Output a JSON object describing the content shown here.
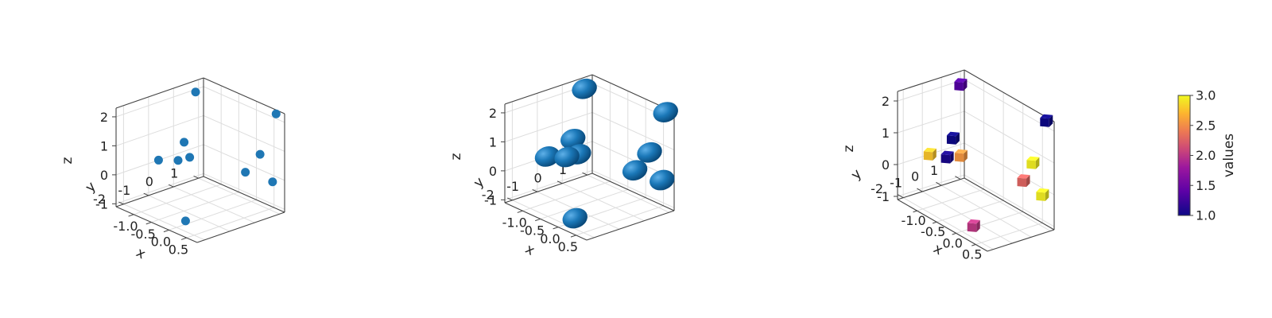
{
  "chart_data": [
    {
      "type": "scatter",
      "marker": "dot",
      "color": "#1f77b4",
      "title": "",
      "xlabel": "x",
      "ylabel": "y",
      "zlabel": "z",
      "xlim": [
        -1.5,
        0.8
      ],
      "ylim": [
        -2.3,
        1.2
      ],
      "zlim": [
        -1.1,
        2.3
      ],
      "xticks": [
        "-1.0",
        "-0.5",
        "0.0",
        "0.5"
      ],
      "yticks": [
        "1",
        "0",
        "-1",
        "-2"
      ],
      "zticks": [
        "2",
        "1",
        "0",
        "-1"
      ],
      "points": [
        {
          "x": 0.7,
          "y": 1.0,
          "z": 2.3
        },
        {
          "x": -1.3,
          "y": 0.6,
          "z": 2.1
        },
        {
          "x": 0.6,
          "y": 0.5,
          "z": 1.0
        },
        {
          "x": 0.75,
          "y": -0.3,
          "z": 0.7
        },
        {
          "x": -1.2,
          "y": 0.0,
          "z": 0.6
        },
        {
          "x": -0.9,
          "y": -0.2,
          "z": 0.3
        },
        {
          "x": -1.5,
          "y": -0.6,
          "z": 0.0
        },
        {
          "x": -1.3,
          "y": -0.1,
          "z": -0.05
        },
        {
          "x": 0.6,
          "y": 1.0,
          "z": -0.1
        },
        {
          "x": 0.4,
          "y": -2.2,
          "z": -0.6
        }
      ]
    },
    {
      "type": "scatter",
      "marker": "sphere",
      "color": "#1f77b4",
      "title": "",
      "xlabel": "x",
      "ylabel": "y",
      "zlabel": "z",
      "xlim": [
        -1.5,
        0.8
      ],
      "ylim": [
        -2.3,
        1.2
      ],
      "zlim": [
        -1.1,
        2.3
      ],
      "xticks": [
        "-1.0",
        "-0.5",
        "0.0",
        "0.5"
      ],
      "yticks": [
        "1",
        "0",
        "-1",
        "-2"
      ],
      "zticks": [
        "2",
        "1",
        "0",
        "-1"
      ],
      "points": [
        {
          "x": 0.7,
          "y": 1.0,
          "z": 2.3
        },
        {
          "x": -1.3,
          "y": 0.6,
          "z": 2.1
        },
        {
          "x": 0.6,
          "y": 0.5,
          "z": 1.0
        },
        {
          "x": 0.75,
          "y": -0.3,
          "z": 0.7
        },
        {
          "x": -1.2,
          "y": 0.0,
          "z": 0.6
        },
        {
          "x": -0.9,
          "y": -0.2,
          "z": 0.3
        },
        {
          "x": -1.5,
          "y": -0.6,
          "z": 0.0
        },
        {
          "x": -1.3,
          "y": -0.1,
          "z": -0.05
        },
        {
          "x": 0.6,
          "y": 1.0,
          "z": -0.1
        },
        {
          "x": 0.4,
          "y": -2.2,
          "z": -0.6
        }
      ]
    },
    {
      "type": "scatter",
      "marker": "cube",
      "colormap": "plasma",
      "title": "",
      "xlabel": "x",
      "ylabel": "y",
      "zlabel": "z",
      "xlim": [
        -1.5,
        0.8
      ],
      "ylim": [
        -2.3,
        1.2
      ],
      "zlim": [
        -1.1,
        2.3
      ],
      "xticks": [
        "-1.0",
        "-0.5",
        "0.0",
        "0.5"
      ],
      "yticks": [
        "1",
        "0",
        "-1",
        "-2"
      ],
      "zticks": [
        "2",
        "1",
        "0",
        "-1"
      ],
      "colorbar": {
        "label": "values",
        "range": [
          1.0,
          3.0
        ],
        "ticks": [
          "3.0",
          "2.5",
          "2.0",
          "1.5",
          "1.0"
        ]
      },
      "points": [
        {
          "x": 0.7,
          "y": 1.0,
          "z": 2.3,
          "value": 1.0
        },
        {
          "x": -1.3,
          "y": 0.6,
          "z": 2.1,
          "value": 1.3
        },
        {
          "x": 0.6,
          "y": 0.5,
          "z": 1.0,
          "value": 2.95
        },
        {
          "x": 0.75,
          "y": -0.3,
          "z": 0.7,
          "value": 2.2
        },
        {
          "x": -1.2,
          "y": 0.0,
          "z": 0.6,
          "value": 1.0
        },
        {
          "x": -0.9,
          "y": -0.2,
          "z": 0.3,
          "value": 2.5
        },
        {
          "x": -1.5,
          "y": -0.6,
          "z": 0.0,
          "value": 2.75
        },
        {
          "x": -1.3,
          "y": -0.1,
          "z": -0.05,
          "value": 1.05
        },
        {
          "x": 0.6,
          "y": 1.0,
          "z": -0.1,
          "value": 2.95
        },
        {
          "x": 0.4,
          "y": -2.2,
          "z": -0.6,
          "value": 1.9
        }
      ]
    }
  ]
}
